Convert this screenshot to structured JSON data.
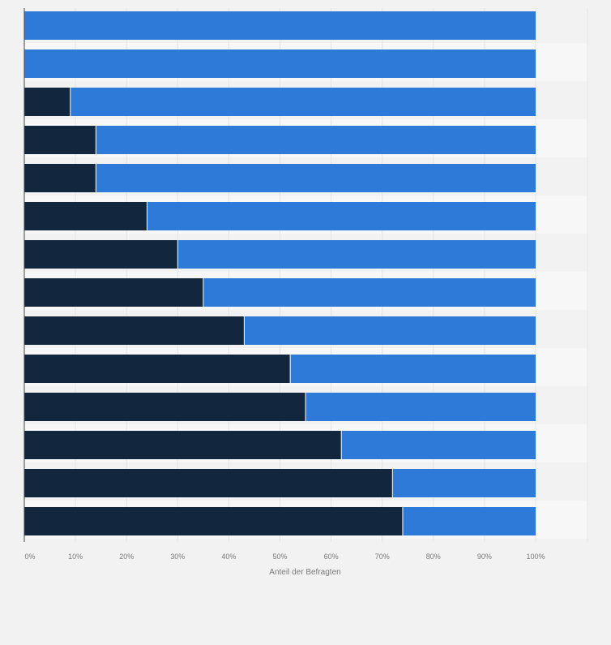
{
  "chart_data": {
    "type": "bar",
    "orientation": "horizontal",
    "stacked": true,
    "categories": [
      "",
      "",
      "",
      "",
      "",
      "",
      "",
      "",
      "",
      "",
      "",
      "",
      "",
      ""
    ],
    "series": [
      {
        "color": "#12263d",
        "values": [
          0,
          0,
          9,
          14,
          14,
          24,
          30,
          35,
          43,
          52,
          55,
          62,
          72,
          74
        ]
      },
      {
        "color": "#2e7ad8",
        "values": [
          100,
          100,
          91,
          86,
          86,
          76,
          70,
          65,
          57,
          48,
          45,
          38,
          28,
          26
        ]
      }
    ],
    "xlabel": "Anteil der Befragten",
    "xlim": [
      0,
      100
    ],
    "xticks": [
      "0%",
      "10%",
      "20%",
      "30%",
      "40%",
      "50%",
      "60%",
      "70%",
      "80%",
      "90%",
      "100%"
    ],
    "grid": true,
    "legend": "none"
  }
}
